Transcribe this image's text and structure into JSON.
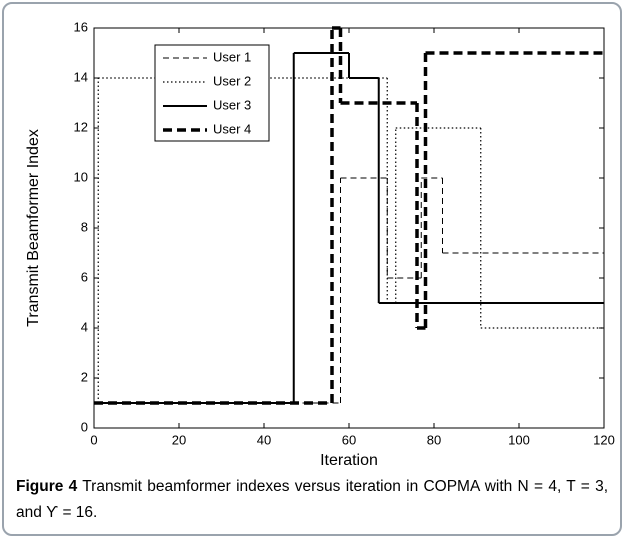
{
  "chart_data": {
    "type": "step",
    "xlabel": "Iteration",
    "ylabel": "Transmit Beamformer Index",
    "xlim": [
      0,
      120
    ],
    "xticks": [
      0,
      20,
      40,
      60,
      80,
      100,
      120
    ],
    "ylim": [
      0,
      16
    ],
    "yticks": [
      0,
      2,
      4,
      6,
      8,
      10,
      12,
      14,
      16
    ],
    "legend": "upper left",
    "series": [
      {
        "name": "User 1",
        "color": "#000000",
        "linestyle": "dashed",
        "x": [
          2,
          58,
          69,
          77,
          82
        ],
        "values": [
          1,
          10,
          6,
          10,
          7
        ]
      },
      {
        "name": "User 2",
        "color": "#000000",
        "linestyle": "dotted",
        "x": [
          0,
          1,
          69,
          71,
          91
        ],
        "values": [
          1,
          14,
          5,
          12,
          4
        ]
      },
      {
        "name": "User 3",
        "color": "#000000",
        "linestyle": "solid",
        "x": [
          0,
          47,
          60,
          67
        ],
        "values": [
          1,
          15,
          14,
          5
        ]
      },
      {
        "name": "User 4",
        "color": "#000000",
        "linestyle": "thick-dashed",
        "x": [
          0,
          56,
          58,
          76,
          78
        ],
        "values": [
          1,
          16,
          13,
          4,
          15
        ]
      }
    ]
  },
  "caption": {
    "label": "Figure 4",
    "text": "Transmit beamformer indexes versus iteration in COPMA with N = 4, T = 3, and ϒ = 16."
  }
}
